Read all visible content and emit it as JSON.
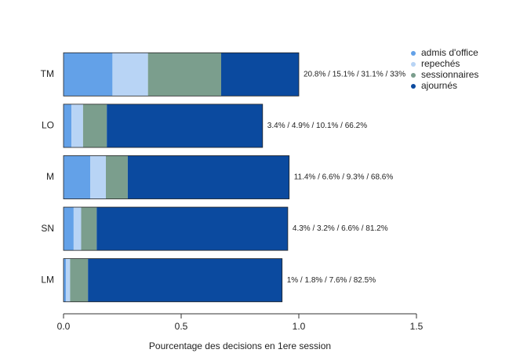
{
  "chart_data": {
    "type": "stacked-barh",
    "x_label": "Pourcentage des decisions en 1ere session",
    "categories": [
      "TM",
      "LO",
      "M",
      "SN",
      "LM"
    ],
    "series": [
      {
        "name": "admis d'office",
        "color": "#63a1e8",
        "values": [
          0.208,
          0.034,
          0.114,
          0.043,
          0.01
        ]
      },
      {
        "name": "repechés",
        "color": "#b8d4f5",
        "values": [
          0.151,
          0.049,
          0.066,
          0.032,
          0.018
        ]
      },
      {
        "name": "sessionnaires",
        "color": "#7b9e8d",
        "values": [
          0.311,
          0.101,
          0.093,
          0.066,
          0.076
        ]
      },
      {
        "name": "ajournés",
        "color": "#0b4a9f",
        "values": [
          0.33,
          0.662,
          0.686,
          0.812,
          0.825
        ]
      }
    ],
    "bar_labels": [
      "20.8% / 15.1% / 31.1% / 33%",
      "3.4% / 4.9% / 10.1% / 66.2%",
      "11.4% / 6.6% / 9.3% / 68.6%",
      "4.3% / 3.2% / 6.6% / 81.2%",
      "1% / 1.8% / 7.6% / 82.5%"
    ],
    "xlim": [
      0,
      1.5
    ],
    "xticks": [
      {
        "value": 0,
        "label": "0.0"
      },
      {
        "value": 0.5,
        "label": "0.5"
      },
      {
        "value": 1,
        "label": "1.0"
      },
      {
        "value": 1.5,
        "label": "1.5"
      }
    ],
    "legend": "top-right"
  }
}
